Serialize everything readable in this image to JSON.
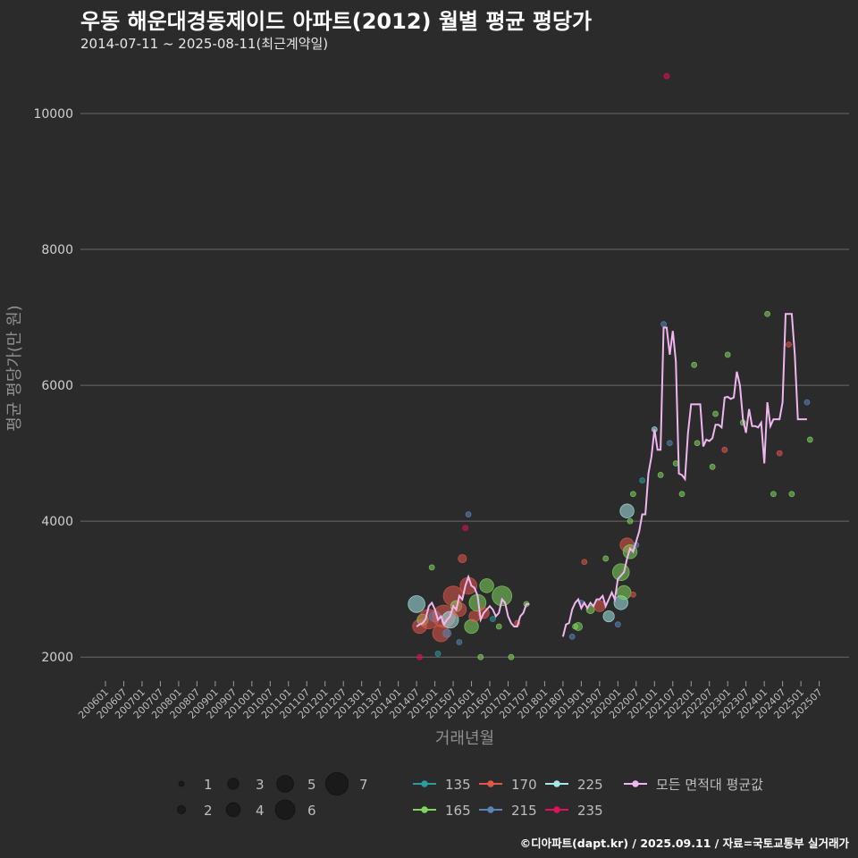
{
  "header": {
    "title": "우동 해운대경동제이드 아파트(2012) 월별 평균 평당가",
    "subtitle": "2014-07-11 ~ 2025-08-11(최근계약일)"
  },
  "caption": "©디아파트(dapt.kr) / 2025.09.11 / 자료=국토교통부 실거래가",
  "colors": {
    "background": "#2b2b2c",
    "grid": "#6a6a6a",
    "avg_line": "#f0b6f0",
    "s135": "#2a9d9d",
    "s165": "#7fd65f",
    "s170": "#e0584a",
    "s215": "#5b84b5",
    "s225": "#a6e8e8",
    "s235": "#e0105a"
  },
  "chart_data": {
    "type": "scatter",
    "title": "우동 해운대경동제이드 아파트(2012) 월별 평균 평당가",
    "xlabel": "거래년월",
    "ylabel": "평균 평당가(만 원)",
    "x_ticks": [
      "200601",
      "200607",
      "200701",
      "200707",
      "200801",
      "200807",
      "200901",
      "200907",
      "201001",
      "201007",
      "201101",
      "201107",
      "201201",
      "201207",
      "201301",
      "201307",
      "201401",
      "201407",
      "201501",
      "201507",
      "201601",
      "201607",
      "201701",
      "201707",
      "201801",
      "201807",
      "201901",
      "201907",
      "202001",
      "202007",
      "202101",
      "202107",
      "202201",
      "202207",
      "202301",
      "202307",
      "202401",
      "202407",
      "202501",
      "202507"
    ],
    "x_range": [
      "2006-01",
      "2025-08"
    ],
    "y_ticks": [
      2000,
      4000,
      6000,
      8000,
      10000
    ],
    "ylim": [
      1700,
      10750
    ],
    "grid": true,
    "size_legend": {
      "title": "",
      "values": [
        1,
        2,
        3,
        4,
        5,
        6,
        7
      ]
    },
    "color_legend": {
      "entries": [
        {
          "label": "135",
          "key": "s135"
        },
        {
          "label": "165",
          "key": "s165"
        },
        {
          "label": "170",
          "key": "s170"
        },
        {
          "label": "215",
          "key": "s215"
        },
        {
          "label": "225",
          "key": "s225"
        },
        {
          "label": "235",
          "key": "s235"
        }
      ],
      "avg_label": "모든 면적대 평균값"
    },
    "avg_series": {
      "name": "모든 면적대 평균값",
      "segments": [
        [
          [
            "2014-07",
            2450
          ],
          [
            "2014-08",
            2480
          ],
          [
            "2014-09",
            2500
          ],
          [
            "2014-10",
            2560
          ],
          [
            "2014-11",
            2750
          ],
          [
            "2014-12",
            2800
          ],
          [
            "2015-01",
            2700
          ],
          [
            "2015-02",
            2550
          ],
          [
            "2015-03",
            2600
          ],
          [
            "2015-04",
            2480
          ],
          [
            "2015-05",
            2550
          ],
          [
            "2015-06",
            2600
          ],
          [
            "2015-07",
            2750
          ],
          [
            "2015-08",
            2700
          ],
          [
            "2015-09",
            2900
          ],
          [
            "2015-10",
            2850
          ],
          [
            "2015-11",
            3050
          ],
          [
            "2015-12",
            3180
          ],
          [
            "2016-01",
            3050
          ],
          [
            "2016-02",
            3020
          ],
          [
            "2016-03",
            2900
          ],
          [
            "2016-04",
            2550
          ],
          [
            "2016-05",
            2650
          ],
          [
            "2016-06",
            2700
          ],
          [
            "2016-07",
            2750
          ],
          [
            "2016-08",
            2700
          ],
          [
            "2016-09",
            2600
          ],
          [
            "2016-10",
            2650
          ],
          [
            "2016-11",
            2850
          ],
          [
            "2016-12",
            2800
          ],
          [
            "2017-01",
            2600
          ],
          [
            "2017-02",
            2500
          ],
          [
            "2017-03",
            2450
          ],
          [
            "2017-04",
            2450
          ],
          [
            "2017-05",
            2600
          ],
          [
            "2017-06",
            2650
          ],
          [
            "2017-07",
            2780
          ],
          [
            "2017-08",
            2780
          ]
        ],
        [
          [
            "2018-07",
            2300
          ],
          [
            "2018-08",
            2480
          ],
          [
            "2018-09",
            2500
          ],
          [
            "2018-10",
            2700
          ],
          [
            "2018-11",
            2800
          ],
          [
            "2018-12",
            2850
          ],
          [
            "2019-01",
            2720
          ],
          [
            "2019-02",
            2800
          ],
          [
            "2019-03",
            2720
          ],
          [
            "2019-04",
            2800
          ],
          [
            "2019-05",
            2750
          ],
          [
            "2019-06",
            2850
          ],
          [
            "2019-07",
            2850
          ],
          [
            "2019-08",
            2900
          ],
          [
            "2019-09",
            2750
          ],
          [
            "2019-10",
            2850
          ],
          [
            "2019-11",
            2950
          ],
          [
            "2019-12",
            2850
          ],
          [
            "2020-01",
            3150
          ],
          [
            "2020-02",
            3200
          ],
          [
            "2020-03",
            3250
          ],
          [
            "2020-04",
            3450
          ],
          [
            "2020-05",
            3600
          ],
          [
            "2020-06",
            3550
          ],
          [
            "2020-07",
            3700
          ],
          [
            "2020-08",
            3850
          ],
          [
            "2020-09",
            4100
          ],
          [
            "2020-10",
            4100
          ],
          [
            "2020-11",
            4700
          ],
          [
            "2020-12",
            4950
          ],
          [
            "2021-01",
            5350
          ],
          [
            "2021-02",
            5050
          ],
          [
            "2021-03",
            5050
          ],
          [
            "2021-04",
            6850
          ],
          [
            "2021-05",
            6850
          ],
          [
            "2021-06",
            6450
          ],
          [
            "2021-07",
            6800
          ],
          [
            "2021-08",
            6350
          ],
          [
            "2021-09",
            4700
          ],
          [
            "2021-10",
            4680
          ],
          [
            "2021-11",
            4620
          ],
          [
            "2021-12",
            5300
          ],
          [
            "2022-01",
            5720
          ],
          [
            "2022-02",
            5720
          ],
          [
            "2022-03",
            5720
          ],
          [
            "2022-04",
            5720
          ],
          [
            "2022-05",
            5100
          ],
          [
            "2022-06",
            5200
          ],
          [
            "2022-07",
            5180
          ],
          [
            "2022-08",
            5220
          ],
          [
            "2022-09",
            5420
          ],
          [
            "2022-10",
            5420
          ],
          [
            "2022-11",
            5380
          ],
          [
            "2022-12",
            5820
          ],
          [
            "2023-01",
            5830
          ],
          [
            "2023-02",
            5800
          ],
          [
            "2023-03",
            5820
          ],
          [
            "2023-04",
            6200
          ],
          [
            "2023-05",
            6000
          ],
          [
            "2023-06",
            5500
          ],
          [
            "2023-07",
            5300
          ],
          [
            "2023-08",
            5650
          ],
          [
            "2023-09",
            5400
          ],
          [
            "2023-10",
            5400
          ],
          [
            "2023-11",
            5380
          ],
          [
            "2023-12",
            5450
          ],
          [
            "2024-01",
            4850
          ],
          [
            "2024-02",
            5750
          ],
          [
            "2024-03",
            5400
          ],
          [
            "2024-04",
            5500
          ],
          [
            "2024-05",
            5500
          ],
          [
            "2024-06",
            5500
          ],
          [
            "2024-07",
            5750
          ],
          [
            "2024-08",
            7050
          ],
          [
            "2024-09",
            7050
          ],
          [
            "2024-10",
            7050
          ],
          [
            "2024-11",
            6450
          ],
          [
            "2024-12",
            5500
          ],
          [
            "2025-01",
            5500
          ],
          [
            "2025-02",
            5500
          ],
          [
            "2025-03",
            5500
          ]
        ]
      ]
    },
    "points": [
      {
        "x": "2014-07",
        "y": 2780,
        "area": "225",
        "n": 5
      },
      {
        "x": "2014-08",
        "y": 2000,
        "area": "235",
        "n": 1
      },
      {
        "x": "2014-08",
        "y": 2450,
        "area": "170",
        "n": 4
      },
      {
        "x": "2014-09",
        "y": 2550,
        "area": "165",
        "n": 3
      },
      {
        "x": "2014-11",
        "y": 2560,
        "area": "170",
        "n": 6
      },
      {
        "x": "2014-12",
        "y": 3320,
        "area": "165",
        "n": 1
      },
      {
        "x": "2015-01",
        "y": 2600,
        "area": "215",
        "n": 3
      },
      {
        "x": "2015-02",
        "y": 2050,
        "area": "135",
        "n": 1
      },
      {
        "x": "2015-03",
        "y": 2350,
        "area": "170",
        "n": 5
      },
      {
        "x": "2015-04",
        "y": 2600,
        "area": "170",
        "n": 7
      },
      {
        "x": "2015-05",
        "y": 2350,
        "area": "215",
        "n": 2
      },
      {
        "x": "2015-06",
        "y": 2550,
        "area": "225",
        "n": 5
      },
      {
        "x": "2015-07",
        "y": 2900,
        "area": "170",
        "n": 6
      },
      {
        "x": "2015-08",
        "y": 2750,
        "area": "165",
        "n": 3
      },
      {
        "x": "2015-09",
        "y": 2220,
        "area": "215",
        "n": 1
      },
      {
        "x": "2015-09",
        "y": 2700,
        "area": "170",
        "n": 4
      },
      {
        "x": "2015-10",
        "y": 3450,
        "area": "170",
        "n": 2
      },
      {
        "x": "2015-11",
        "y": 3900,
        "area": "235",
        "n": 1
      },
      {
        "x": "2015-12",
        "y": 4100,
        "area": "215",
        "n": 1
      },
      {
        "x": "2015-12",
        "y": 3050,
        "area": "170",
        "n": 5
      },
      {
        "x": "2016-01",
        "y": 2450,
        "area": "165",
        "n": 4
      },
      {
        "x": "2016-02",
        "y": 2600,
        "area": "170",
        "n": 3
      },
      {
        "x": "2016-03",
        "y": 2800,
        "area": "165",
        "n": 5
      },
      {
        "x": "2016-04",
        "y": 2000,
        "area": "165",
        "n": 1
      },
      {
        "x": "2016-05",
        "y": 2650,
        "area": "170",
        "n": 3
      },
      {
        "x": "2016-06",
        "y": 3050,
        "area": "165",
        "n": 4
      },
      {
        "x": "2016-08",
        "y": 2560,
        "area": "135",
        "n": 1
      },
      {
        "x": "2016-10",
        "y": 2450,
        "area": "165",
        "n": 1
      },
      {
        "x": "2016-11",
        "y": 2900,
        "area": "165",
        "n": 6
      },
      {
        "x": "2017-02",
        "y": 2000,
        "area": "165",
        "n": 1
      },
      {
        "x": "2017-04",
        "y": 2500,
        "area": "170",
        "n": 1
      },
      {
        "x": "2017-07",
        "y": 2780,
        "area": "165",
        "n": 1
      },
      {
        "x": "2018-10",
        "y": 2300,
        "area": "215",
        "n": 1
      },
      {
        "x": "2018-11",
        "y": 2450,
        "area": "165",
        "n": 1
      },
      {
        "x": "2018-12",
        "y": 2450,
        "area": "165",
        "n": 2
      },
      {
        "x": "2019-01",
        "y": 2800,
        "area": "215",
        "n": 1
      },
      {
        "x": "2019-02",
        "y": 3400,
        "area": "170",
        "n": 1
      },
      {
        "x": "2019-04",
        "y": 2700,
        "area": "165",
        "n": 2
      },
      {
        "x": "2019-07",
        "y": 2750,
        "area": "170",
        "n": 3
      },
      {
        "x": "2019-09",
        "y": 3450,
        "area": "165",
        "n": 1
      },
      {
        "x": "2019-10",
        "y": 2600,
        "area": "225",
        "n": 3
      },
      {
        "x": "2020-01",
        "y": 2480,
        "area": "215",
        "n": 1
      },
      {
        "x": "2020-02",
        "y": 3250,
        "area": "165",
        "n": 5
      },
      {
        "x": "2020-02",
        "y": 2800,
        "area": "225",
        "n": 4
      },
      {
        "x": "2020-03",
        "y": 2950,
        "area": "165",
        "n": 4
      },
      {
        "x": "2020-04",
        "y": 3650,
        "area": "170",
        "n": 4
      },
      {
        "x": "2020-04",
        "y": 4150,
        "area": "225",
        "n": 4
      },
      {
        "x": "2020-05",
        "y": 3550,
        "area": "165",
        "n": 4
      },
      {
        "x": "2020-05",
        "y": 4000,
        "area": "165",
        "n": 1
      },
      {
        "x": "2020-06",
        "y": 4400,
        "area": "165",
        "n": 1
      },
      {
        "x": "2020-06",
        "y": 2920,
        "area": "170",
        "n": 1
      },
      {
        "x": "2020-07",
        "y": 3650,
        "area": "215",
        "n": 1
      },
      {
        "x": "2020-09",
        "y": 4600,
        "area": "135",
        "n": 1
      },
      {
        "x": "2021-01",
        "y": 5350,
        "area": "225",
        "n": 1
      },
      {
        "x": "2021-03",
        "y": 4680,
        "area": "165",
        "n": 1
      },
      {
        "x": "2021-04",
        "y": 6900,
        "area": "215",
        "n": 1
      },
      {
        "x": "2021-05",
        "y": 10550,
        "area": "235",
        "n": 1
      },
      {
        "x": "2021-06",
        "y": 5150,
        "area": "215",
        "n": 1
      },
      {
        "x": "2021-08",
        "y": 4850,
        "area": "165",
        "n": 1
      },
      {
        "x": "2021-10",
        "y": 4400,
        "area": "165",
        "n": 1
      },
      {
        "x": "2022-02",
        "y": 6300,
        "area": "165",
        "n": 1
      },
      {
        "x": "2022-03",
        "y": 5150,
        "area": "165",
        "n": 1
      },
      {
        "x": "2022-08",
        "y": 4800,
        "area": "165",
        "n": 1
      },
      {
        "x": "2022-09",
        "y": 5580,
        "area": "165",
        "n": 1
      },
      {
        "x": "2022-12",
        "y": 5050,
        "area": "170",
        "n": 1
      },
      {
        "x": "2023-01",
        "y": 6450,
        "area": "165",
        "n": 1
      },
      {
        "x": "2023-06",
        "y": 5450,
        "area": "165",
        "n": 1
      },
      {
        "x": "2024-02",
        "y": 7050,
        "area": "165",
        "n": 1
      },
      {
        "x": "2024-04",
        "y": 4400,
        "area": "165",
        "n": 1
      },
      {
        "x": "2024-06",
        "y": 5000,
        "area": "170",
        "n": 1
      },
      {
        "x": "2024-09",
        "y": 6600,
        "area": "170",
        "n": 1
      },
      {
        "x": "2024-10",
        "y": 4400,
        "area": "165",
        "n": 1
      },
      {
        "x": "2025-03",
        "y": 5750,
        "area": "215",
        "n": 1
      },
      {
        "x": "2025-04",
        "y": 5200,
        "area": "165",
        "n": 1
      }
    ]
  }
}
